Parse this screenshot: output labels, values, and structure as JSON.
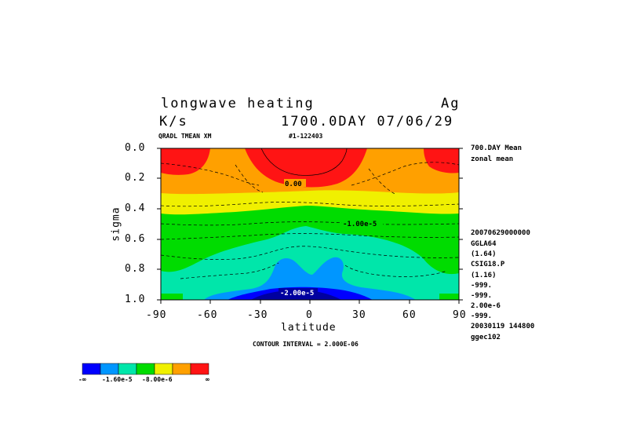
{
  "header": {
    "title_left": "longwave heating",
    "title_right": "Ag",
    "units": "K/s",
    "day_info": "1700.0DAY 07/06/29",
    "var_name": "QRADL TMEAN XM",
    "run_id": "#1-122403"
  },
  "right_panel": {
    "lines_top": [
      "700.DAY Mean",
      "zonal mean"
    ],
    "lines_bottom": [
      "20070629000000",
      "GGLA64",
      "(1.64)",
      "CSIG18.P",
      "(1.16)",
      "-999.",
      "-999.",
      "2.00e-6",
      "-999.",
      "20030119 144800",
      "ggec102"
    ]
  },
  "contour_interval_label": "CONTOUR INTERVAL = 2.000E-06",
  "chart_data": {
    "type": "contour",
    "title": "longwave heating",
    "xlabel": "latitude",
    "ylabel": "sigma",
    "xlim": [
      -90,
      90
    ],
    "ylim": [
      0.0,
      1.0
    ],
    "y_inverted": true,
    "x_ticks": [
      -90,
      -60,
      -30,
      0,
      30,
      60,
      90
    ],
    "x_tick_labels": [
      "-90",
      "-60",
      "-30",
      "0",
      "30",
      "60",
      "90"
    ],
    "y_ticks": [
      0.0,
      0.2,
      0.4,
      0.6,
      0.8,
      1.0
    ],
    "y_tick_labels": [
      "0.0",
      "0.2",
      "0.4",
      "0.6",
      "0.8",
      "1.0"
    ],
    "contour_interval": 2e-06,
    "contour_labels": [
      {
        "text": "0.00",
        "lat": -16,
        "sigma": 0.24
      },
      {
        "text": "-1.00e-5",
        "lat": 31,
        "sigma": 0.5
      },
      {
        "text": "-2.00e-5",
        "lat": -11,
        "sigma": 0.97
      }
    ],
    "colors": [
      "#0000ff",
      "#0096ff",
      "#00e6aa",
      "#00dc00",
      "#f0f000",
      "#ffa000",
      "#ff1414",
      "#0000a0"
    ],
    "color_bar": {
      "colors": [
        "#0000ff",
        "#0096ff",
        "#00e6aa",
        "#00dc00",
        "#f0f000",
        "#ffa000",
        "#ff1414"
      ],
      "labels": [
        "-∞",
        "-1.60e-5",
        "-8.00e-6",
        "∞"
      ]
    }
  }
}
